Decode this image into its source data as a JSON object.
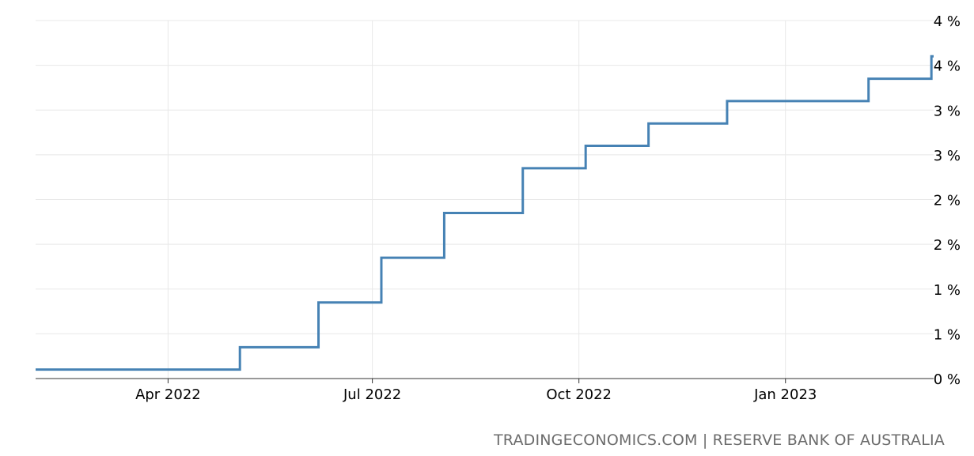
{
  "source_text": "TRADINGECONOMICS.COM | RESERVE BANK OF AUSTRALIA",
  "colors": {
    "line": "#4682b4",
    "grid": "#e8e8e8",
    "axis": "#333333"
  },
  "chart_data": {
    "type": "line",
    "step": true,
    "title": "",
    "xlabel": "",
    "ylabel": "",
    "x_range": [
      "2022-02-01",
      "2023-03-08"
    ],
    "ylim": [
      0.0,
      4.0
    ],
    "grid": true,
    "y_axis_position": "right",
    "x_ticks": [
      {
        "date": "2022-04-01",
        "label": "Apr 2022"
      },
      {
        "date": "2022-07-01",
        "label": "Jul 2022"
      },
      {
        "date": "2022-10-01",
        "label": "Oct 2022"
      },
      {
        "date": "2023-01-01",
        "label": "Jan 2023"
      }
    ],
    "y_ticks": [
      {
        "value": 0.0,
        "label": "0 %"
      },
      {
        "value": 0.5,
        "label": "1 %"
      },
      {
        "value": 1.0,
        "label": "1 %"
      },
      {
        "value": 1.5,
        "label": "2 %"
      },
      {
        "value": 2.0,
        "label": "2 %"
      },
      {
        "value": 2.5,
        "label": "3 %"
      },
      {
        "value": 3.0,
        "label": "3 %"
      },
      {
        "value": 3.5,
        "label": "4 %"
      },
      {
        "value": 4.0,
        "label": "4 %"
      }
    ],
    "series": [
      {
        "x": [
          "2022-02-01",
          "2022-05-03",
          "2022-06-07",
          "2022-07-05",
          "2022-08-02",
          "2022-09-06",
          "2022-10-04",
          "2022-11-01",
          "2022-12-06",
          "2023-02-07",
          "2023-03-07"
        ],
        "values": [
          0.1,
          0.35,
          0.85,
          1.35,
          1.85,
          2.35,
          2.6,
          2.85,
          3.1,
          3.35,
          3.6
        ]
      }
    ]
  }
}
